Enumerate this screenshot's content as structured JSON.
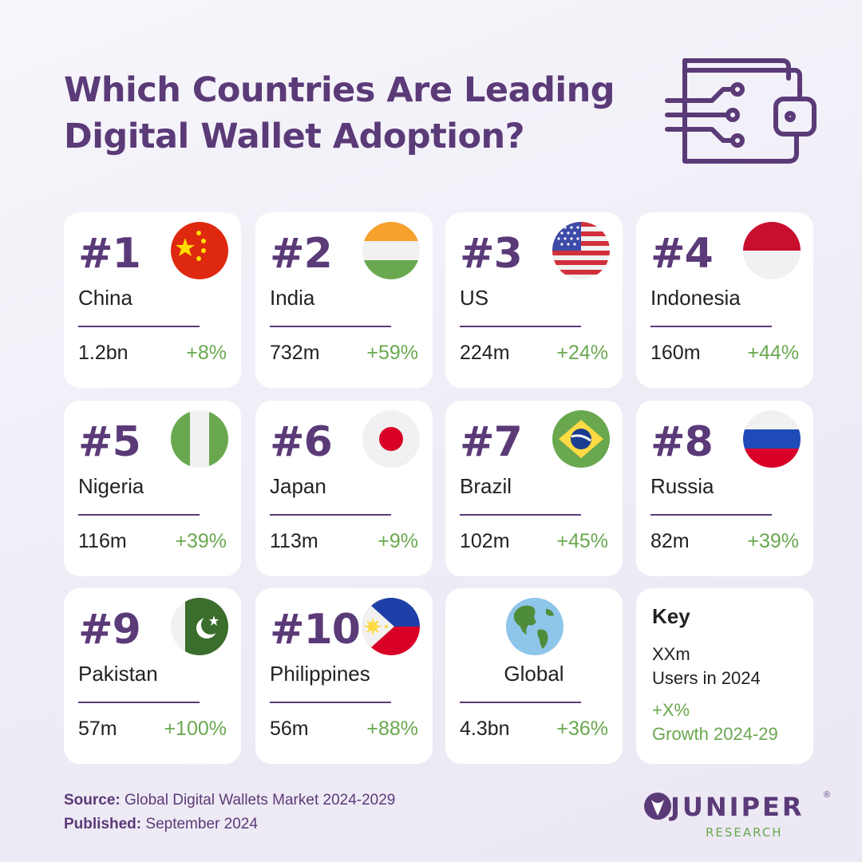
{
  "title": {
    "line1": "Which Countries Are Leading",
    "line2": "Digital Wallet Adoption?"
  },
  "colors": {
    "purple": "#5b3a78",
    "green": "#6aa84f",
    "card": "#ffffff"
  },
  "header_icon": "digital-wallet-icon",
  "countries": [
    {
      "rank": "#1",
      "name": "China",
      "users": "1.2bn",
      "growth": "+8%",
      "flag": "china-flag-icon"
    },
    {
      "rank": "#2",
      "name": "India",
      "users": "732m",
      "growth": "+59%",
      "flag": "india-flag-icon"
    },
    {
      "rank": "#3",
      "name": "US",
      "users": "224m",
      "growth": "+24%",
      "flag": "us-flag-icon"
    },
    {
      "rank": "#4",
      "name": "Indonesia",
      "users": "160m",
      "growth": "+44%",
      "flag": "indonesia-flag-icon"
    },
    {
      "rank": "#5",
      "name": "Nigeria",
      "users": "116m",
      "growth": "+39%",
      "flag": "nigeria-flag-icon"
    },
    {
      "rank": "#6",
      "name": "Japan",
      "users": "113m",
      "growth": "+9%",
      "flag": "japan-flag-icon"
    },
    {
      "rank": "#7",
      "name": "Brazil",
      "users": "102m",
      "growth": "+45%",
      "flag": "brazil-flag-icon"
    },
    {
      "rank": "#8",
      "name": "Russia",
      "users": "82m",
      "growth": "+39%",
      "flag": "russia-flag-icon"
    },
    {
      "rank": "#9",
      "name": "Pakistan",
      "users": "57m",
      "growth": "+100%",
      "flag": "pakistan-flag-icon"
    },
    {
      "rank": "#10",
      "name": "Philippines",
      "users": "56m",
      "growth": "+88%",
      "flag": "philippines-flag-icon"
    }
  ],
  "global": {
    "name": "Global",
    "users": "4.3bn",
    "growth": "+36%",
    "icon": "globe-icon"
  },
  "key": {
    "title": "Key",
    "users_value": "XXm",
    "users_label": "Users in 2024",
    "growth_value": "+X%",
    "growth_label": "Growth 2024-29"
  },
  "footer": {
    "source_label": "Source:",
    "source_value": " Global Digital Wallets Market 2024-2029",
    "published_label": "Published:",
    "published_value": " September 2024"
  },
  "logo": {
    "word": "JUNIPER",
    "sub": "RESEARCH",
    "mark": "®"
  }
}
